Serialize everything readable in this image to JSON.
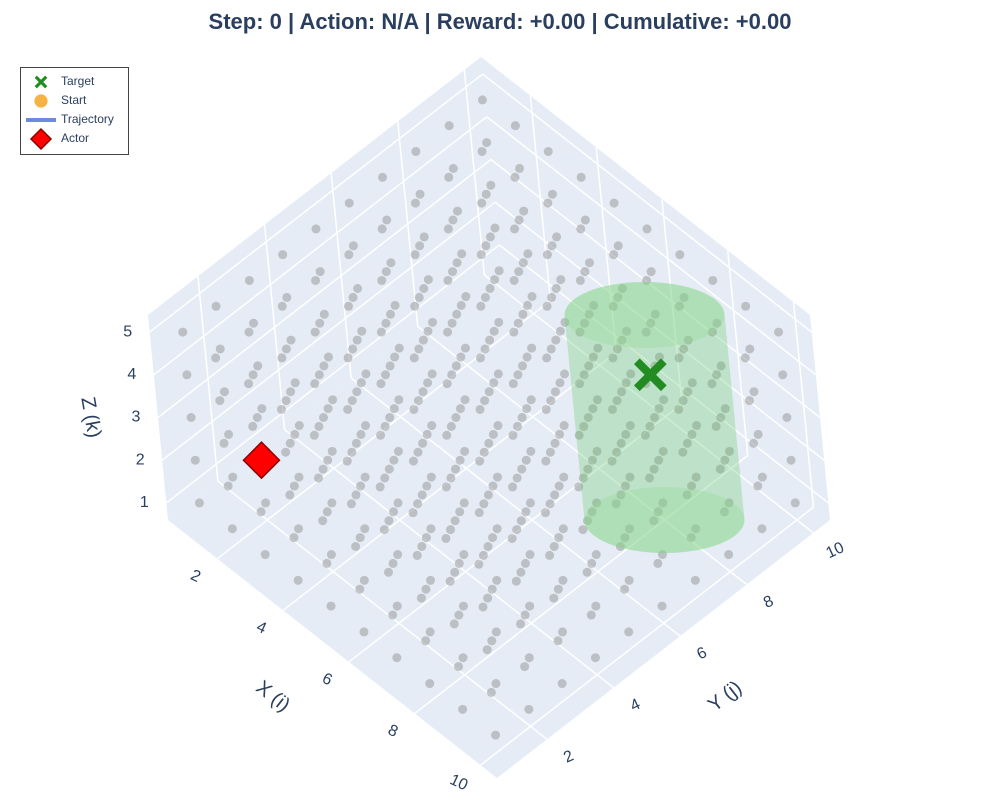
{
  "chart_data": {
    "type": "scatter3d",
    "title": "Step: 0 | Action: N/A | Reward: +0.00 | Cumulative: +0.00",
    "x_label": "X (i)",
    "y_label": "Y (j)",
    "z_label": "Z (k)",
    "xlim": [
      0.5,
      10.5
    ],
    "ylim": [
      0.5,
      10.5
    ],
    "zlim": [
      0.6,
      5.4
    ],
    "xticks": [
      2,
      4,
      6,
      8,
      10
    ],
    "yticks": [
      2,
      4,
      6,
      8,
      10
    ],
    "zticks": [
      1,
      2,
      3,
      4,
      5
    ],
    "grid": {
      "color": "#9a9a9a",
      "x": [
        1,
        2,
        3,
        4,
        5,
        6,
        7,
        8,
        9,
        10
      ],
      "y": [
        1,
        2,
        3,
        4,
        5,
        6,
        7,
        8,
        9,
        10
      ],
      "z": [
        1,
        2,
        3,
        4,
        5
      ]
    },
    "series": [
      {
        "name": "Target",
        "color": "#228b22",
        "marker": "x",
        "x": [
          8
        ],
        "y": [
          8
        ],
        "z": [
          4
        ]
      },
      {
        "name": "Start",
        "color": "#f5a623",
        "marker": "circle",
        "x": [
          2
        ],
        "y": [
          2
        ],
        "z": [
          2
        ]
      },
      {
        "name": "Trajectory",
        "color": "#6b8ae0",
        "marker": "line",
        "x": [
          2
        ],
        "y": [
          2
        ],
        "z": [
          2
        ]
      },
      {
        "name": "Actor",
        "color": "#ff0000",
        "marker": "diamond",
        "x": [
          2
        ],
        "y": [
          2
        ],
        "z": [
          2
        ]
      }
    ],
    "legend": "top-left"
  }
}
